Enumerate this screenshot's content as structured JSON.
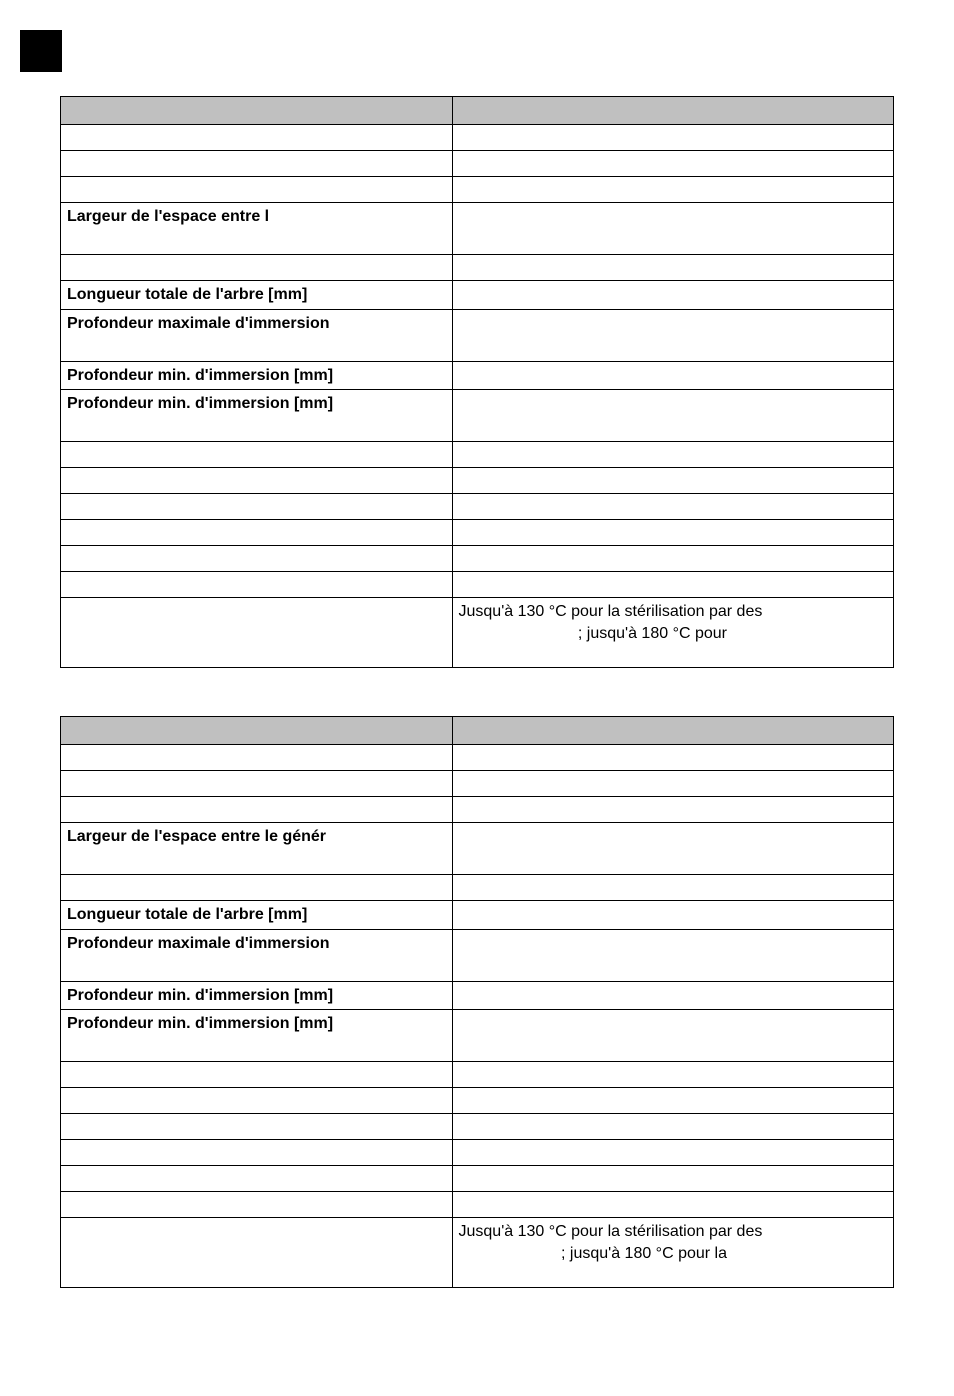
{
  "colors": {
    "page_bg": "#ffffff",
    "text": "#000000",
    "border": "#000000",
    "header_bg": "#c0c0c0",
    "corner_block": "#000000"
  },
  "typography": {
    "font_family": "Arial",
    "base_size_pt": 12
  },
  "table1": {
    "header": {
      "left": "",
      "right": ""
    },
    "rows": [
      {
        "label": "",
        "value": "",
        "bold": false,
        "height": 1
      },
      {
        "label": "",
        "value": "",
        "bold": false,
        "height": 1
      },
      {
        "label": "",
        "value": "",
        "bold": false,
        "height": 1
      },
      {
        "label": "Largeur de l'espace entre l",
        "value": "",
        "bold": true,
        "height": 2
      },
      {
        "label": "",
        "value": "",
        "bold": false,
        "height": 1
      },
      {
        "label": "Longueur totale de l'arbre [mm]",
        "value": "",
        "bold": true,
        "height": 1
      },
      {
        "label": "Profondeur maximale d'immersion",
        "value": "",
        "bold": true,
        "height": 2
      },
      {
        "label": "Profondeur min. d'immersion [mm]",
        "value": "",
        "bold": true,
        "height": 1
      },
      {
        "label": "Profondeur min. d'immersion [mm]",
        "value": "",
        "bold": true,
        "height": 2
      },
      {
        "label": "",
        "value": "",
        "bold": false,
        "height": 1
      },
      {
        "label": "",
        "value": "",
        "bold": false,
        "height": 1
      },
      {
        "label": "",
        "value": "",
        "bold": false,
        "height": 1
      },
      {
        "label": "",
        "value": "",
        "bold": false,
        "height": 1
      },
      {
        "label": "",
        "value": "",
        "bold": false,
        "height": 1
      },
      {
        "label": "",
        "value": "",
        "bold": false,
        "height": 1
      }
    ],
    "temp_row": {
      "label": "",
      "value_line1": "Jusqu'à 130 °C pour la stérilisation par des",
      "value_line2": "; jusqu'à 180 °C pour"
    }
  },
  "table2": {
    "header": {
      "left": "",
      "right": ""
    },
    "rows": [
      {
        "label": "",
        "value": "",
        "bold": false,
        "height": 1
      },
      {
        "label": "",
        "value": "",
        "bold": false,
        "height": 1
      },
      {
        "label": "",
        "value": "",
        "bold": false,
        "height": 1
      },
      {
        "label": "Largeur de l'espace entre le génér",
        "value": "",
        "bold": true,
        "height": 2
      },
      {
        "label": "",
        "value": "",
        "bold": false,
        "height": 1
      },
      {
        "label": "Longueur totale de l'arbre [mm]",
        "value": "",
        "bold": true,
        "height": 1
      },
      {
        "label": "Profondeur maximale d'immersion",
        "value": "",
        "bold": true,
        "height": 2
      },
      {
        "label": "Profondeur min. d'immersion [mm]",
        "value": "",
        "bold": true,
        "height": 1
      },
      {
        "label": "Profondeur min. d'immersion [mm]",
        "value": "",
        "bold": true,
        "height": 2
      },
      {
        "label": "",
        "value": "",
        "bold": false,
        "height": 1
      },
      {
        "label": "",
        "value": "",
        "bold": false,
        "height": 1
      },
      {
        "label": "",
        "value": "",
        "bold": false,
        "height": 1
      },
      {
        "label": "",
        "value": "",
        "bold": false,
        "height": 1
      },
      {
        "label": "",
        "value": "",
        "bold": false,
        "height": 1
      },
      {
        "label": "",
        "value": "",
        "bold": false,
        "height": 1
      }
    ],
    "temp_row": {
      "label": "",
      "value_line1": "Jusqu'à 130 °C pour la stérilisation par des",
      "value_line2": "; jusqu'à 180 °C pour la"
    }
  }
}
